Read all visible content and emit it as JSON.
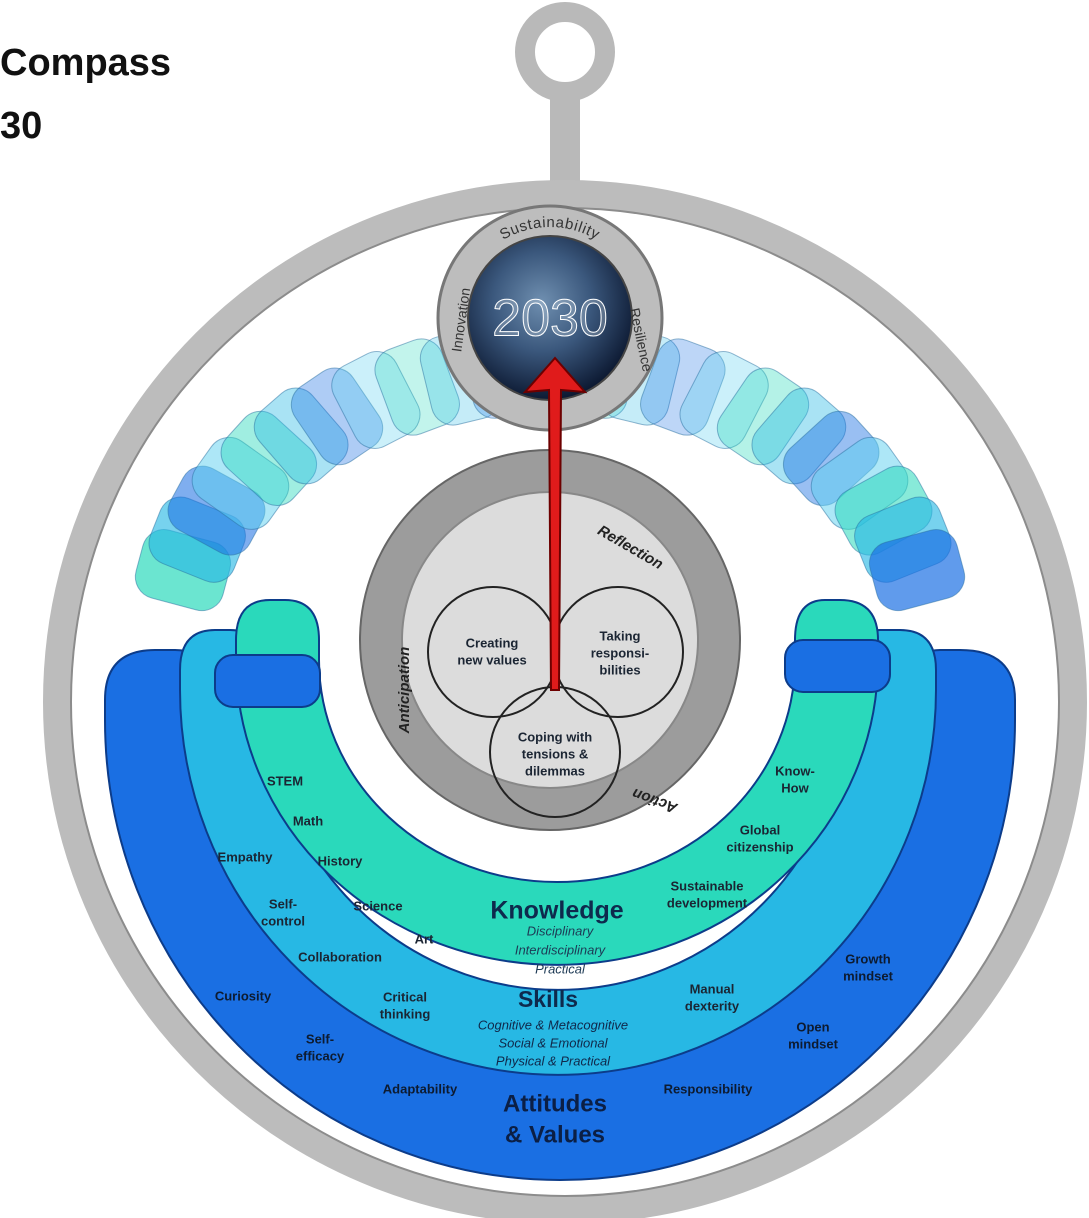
{
  "header": {
    "title_lines": [
      "Compass",
      "30"
    ]
  },
  "globe": {
    "year": "2030",
    "top": "Sustainability",
    "left": "Innovation",
    "right": "Resilience"
  },
  "core": {
    "cycle": [
      "Reflection",
      "Anticipation",
      "Action"
    ],
    "competencies": [
      [
        "Creating",
        "new values"
      ],
      [
        "Taking",
        "responsi-",
        "bilities"
      ],
      [
        "Coping with",
        "tensions &",
        "dilemmas"
      ]
    ]
  },
  "knowledge": {
    "title": "Knowledge",
    "types": [
      "Disciplinary",
      "Interdisciplinary",
      "Practical"
    ],
    "items": [
      [
        "STEM"
      ],
      [
        "Math"
      ],
      [
        "History"
      ],
      [
        "Science"
      ],
      [
        "Art"
      ],
      [
        "Know-",
        "How"
      ],
      [
        "Global",
        "citizenship"
      ],
      [
        "Sustainable",
        "development"
      ]
    ]
  },
  "skills": {
    "title": "Skills",
    "types": [
      "Cognitive & Metacognitive",
      "Social & Emotional",
      "Physical & Practical"
    ],
    "items": [
      [
        "Empathy"
      ],
      [
        "Self-",
        "control"
      ],
      [
        "Collaboration"
      ],
      [
        "Critical",
        "thinking"
      ],
      [
        "Manual",
        "dexterity"
      ]
    ]
  },
  "attitudes": {
    "title": [
      "Attitudes",
      "& Values"
    ],
    "items": [
      [
        "Curiosity"
      ],
      [
        "Self-",
        "efficacy"
      ],
      [
        "Adaptability"
      ],
      [
        "Responsibility"
      ],
      [
        "Open",
        "mindset"
      ],
      [
        "Growth",
        "mindset"
      ]
    ]
  }
}
